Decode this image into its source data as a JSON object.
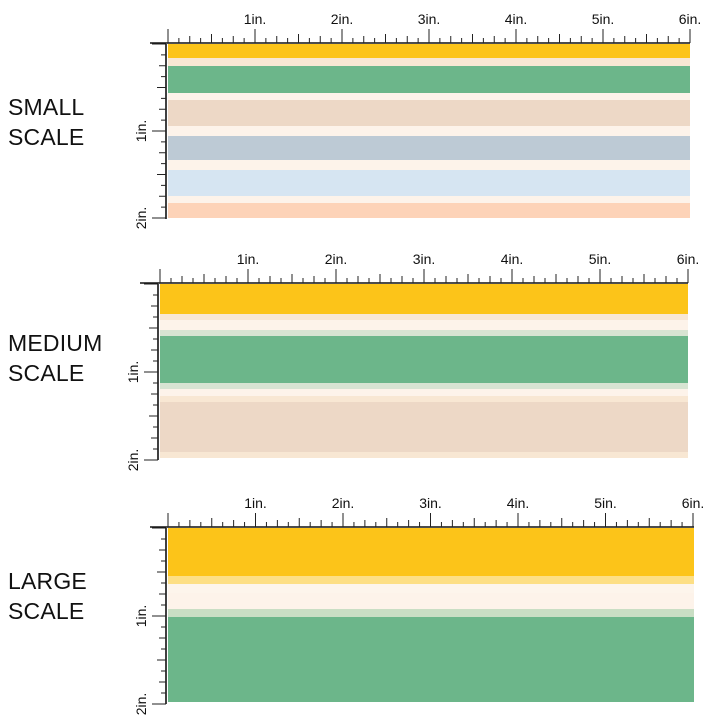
{
  "sections": [
    {
      "label_line1": "SMALL",
      "label_line2": "SCALE",
      "ruler_labels": [
        "1in.",
        "2in.",
        "3in.",
        "4in.",
        "5in.",
        "6in."
      ],
      "side_labels": [
        "1in.",
        "2in."
      ],
      "stripes": [
        {
          "color": "#FCC419"
        },
        {
          "color": "#F8E7D3"
        },
        {
          "color": "#6CB68A"
        },
        {
          "color": "#FDF3EA"
        },
        {
          "color": "#EDD8C6"
        },
        {
          "color": "#FDF3EA"
        },
        {
          "color": "#BDCAD5"
        },
        {
          "color": "#FDF3EA"
        },
        {
          "color": "#D6E5F2"
        },
        {
          "color": "#FDF3EA"
        },
        {
          "color": "#FDD3B8"
        }
      ]
    },
    {
      "label_line1": "MEDIUM",
      "label_line2": "SCALE",
      "ruler_labels": [
        "1in.",
        "2in.",
        "3in.",
        "4in.",
        "5in.",
        "6in."
      ],
      "side_labels": [
        "1in.",
        "2in."
      ],
      "stripes": [
        {
          "color": "#FCC419"
        },
        {
          "color": "#F8E7D3"
        },
        {
          "color": "#FDF3EA"
        },
        {
          "color": "#D7E4D2"
        },
        {
          "color": "#6CB68A"
        },
        {
          "color": "#D7E4D2"
        },
        {
          "color": "#FDF3EA"
        },
        {
          "color": "#F8E7D3"
        },
        {
          "color": "#EDD8C6"
        },
        {
          "color": "#F8E7D3"
        }
      ]
    },
    {
      "label_line1": "LARGE",
      "label_line2": "SCALE",
      "ruler_labels": [
        "1in.",
        "2in.",
        "3in.",
        "4in.",
        "5in.",
        "6in."
      ],
      "side_labels": [
        "1in.",
        "2in."
      ],
      "stripes": [
        {
          "color": "#FCC419"
        },
        {
          "color": "#FDDF85"
        },
        {
          "color": "#FDF5EC"
        },
        {
          "color": "#FDF3EA"
        },
        {
          "color": "#C9DEC4"
        },
        {
          "color": "#6CB68A"
        }
      ]
    }
  ]
}
